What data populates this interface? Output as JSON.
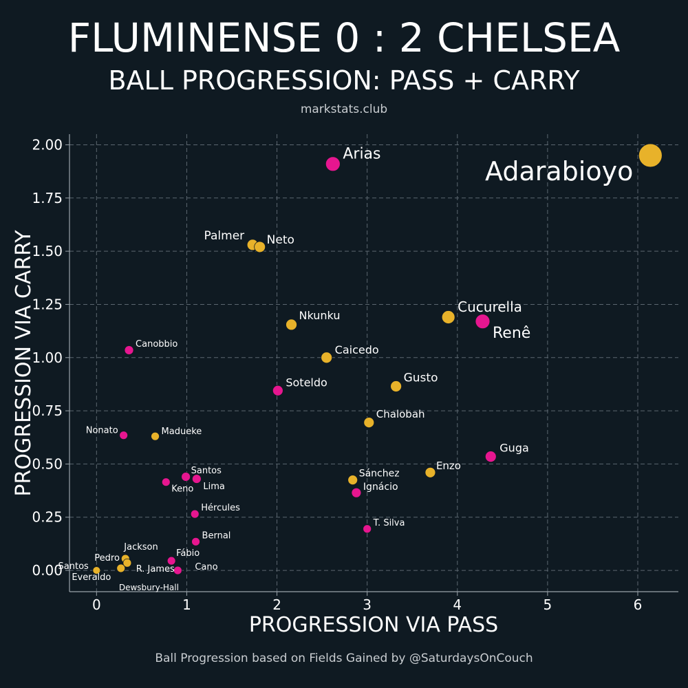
{
  "header": {
    "title": "FLUMINENSE 0 : 2 CHELSEA",
    "subtitle": "BALL PROGRESSION: PASS + CARRY",
    "source": "markstats.club"
  },
  "footer": {
    "note": "Ball Progression based on Fields Gained by @SaturdaysOnCouch"
  },
  "colors": {
    "background": "#0f1a22",
    "fluminense": "#e6168f",
    "chelsea": "#e8b22a",
    "grid": "#5c6770",
    "axis": "#9aa3aa",
    "text": "#ffffff"
  },
  "chart_data": {
    "type": "scatter",
    "xlabel": "PROGRESSION VIA PASS",
    "ylabel": "PROGRESSION VIA CARRY",
    "xlim": [
      -0.3,
      6.45
    ],
    "ylim": [
      -0.1,
      2.05
    ],
    "xticks": [
      0,
      1,
      2,
      3,
      4,
      5,
      6
    ],
    "yticks": [
      0.0,
      0.25,
      0.5,
      0.75,
      1.0,
      1.25,
      1.5,
      1.75,
      2.0
    ],
    "ytick_labels": [
      "0.00",
      "0.25",
      "0.50",
      "0.75",
      "1.00",
      "1.25",
      "1.50",
      "1.75",
      "2.00"
    ],
    "grid": true,
    "points": [
      {
        "label": "Adarabioyo",
        "team": "chelsea",
        "x": 6.14,
        "y": 1.95,
        "size": 34
      },
      {
        "label": "Arias",
        "team": "fluminense",
        "x": 2.62,
        "y": 1.91,
        "size": 21
      },
      {
        "label": "Palmer",
        "team": "chelsea",
        "x": 1.73,
        "y": 1.53,
        "size": 16
      },
      {
        "label": "Neto",
        "team": "chelsea",
        "x": 1.81,
        "y": 1.52,
        "size": 16
      },
      {
        "label": "Cucurella",
        "team": "chelsea",
        "x": 3.9,
        "y": 1.19,
        "size": 19
      },
      {
        "label": "Renê",
        "team": "fluminense",
        "x": 4.28,
        "y": 1.17,
        "size": 21
      },
      {
        "label": "Nkunku",
        "team": "chelsea",
        "x": 2.16,
        "y": 1.155,
        "size": 16
      },
      {
        "label": "Canobbio",
        "team": "fluminense",
        "x": 0.36,
        "y": 1.035,
        "size": 13
      },
      {
        "label": "Caicedo",
        "team": "chelsea",
        "x": 2.55,
        "y": 1.0,
        "size": 16
      },
      {
        "label": "Gusto",
        "team": "chelsea",
        "x": 3.32,
        "y": 0.865,
        "size": 16
      },
      {
        "label": "Soteldo",
        "team": "fluminense",
        "x": 2.01,
        "y": 0.845,
        "size": 15
      },
      {
        "label": "Chalobah",
        "team": "chelsea",
        "x": 3.02,
        "y": 0.695,
        "size": 15
      },
      {
        "label": "Nonato",
        "team": "fluminense",
        "x": 0.3,
        "y": 0.635,
        "size": 12
      },
      {
        "label": "Madueke",
        "team": "chelsea",
        "x": 0.65,
        "y": 0.63,
        "size": 12
      },
      {
        "label": "Guga",
        "team": "fluminense",
        "x": 4.37,
        "y": 0.535,
        "size": 16
      },
      {
        "label": "Enzo",
        "team": "chelsea",
        "x": 3.7,
        "y": 0.46,
        "size": 15
      },
      {
        "label": "Santos",
        "team": "fluminense",
        "x": 0.99,
        "y": 0.44,
        "size": 13
      },
      {
        "label": "Lima",
        "team": "fluminense",
        "x": 1.11,
        "y": 0.43,
        "size": 13
      },
      {
        "label": "Keno",
        "team": "fluminense",
        "x": 0.77,
        "y": 0.415,
        "size": 12
      },
      {
        "label": "Sánchez",
        "team": "chelsea",
        "x": 2.84,
        "y": 0.425,
        "size": 14
      },
      {
        "label": "Ignácio",
        "team": "fluminense",
        "x": 2.88,
        "y": 0.365,
        "size": 14
      },
      {
        "label": "Hércules",
        "team": "fluminense",
        "x": 1.09,
        "y": 0.265,
        "size": 12
      },
      {
        "label": "T. Silva",
        "team": "fluminense",
        "x": 3.0,
        "y": 0.195,
        "size": 12
      },
      {
        "label": "Bernal",
        "team": "fluminense",
        "x": 1.1,
        "y": 0.135,
        "size": 12
      },
      {
        "label": "Jackson",
        "team": "chelsea",
        "x": 0.32,
        "y": 0.055,
        "size": 12
      },
      {
        "label": "Pedro",
        "team": "chelsea",
        "x": 0.34,
        "y": 0.035,
        "size": 12
      },
      {
        "label": "Fábio",
        "team": "fluminense",
        "x": 0.83,
        "y": 0.045,
        "size": 12
      },
      {
        "label": "R. James",
        "team": "chelsea",
        "x": 0.27,
        "y": 0.01,
        "size": 12
      },
      {
        "label": "Cano",
        "team": "fluminense",
        "x": 0.9,
        "y": 0.0,
        "size": 12
      },
      {
        "label": "Santos",
        "team": "chelsea",
        "x": 0.0,
        "y": 0.0,
        "size": 11
      },
      {
        "label": "Everaldo",
        "team": "fluminense",
        "x": 0.0,
        "y": 0.0,
        "size": 11
      },
      {
        "label": "Dewsbury-Hall",
        "team": "chelsea",
        "x": 0.0,
        "y": 0.0,
        "size": 11
      }
    ]
  }
}
